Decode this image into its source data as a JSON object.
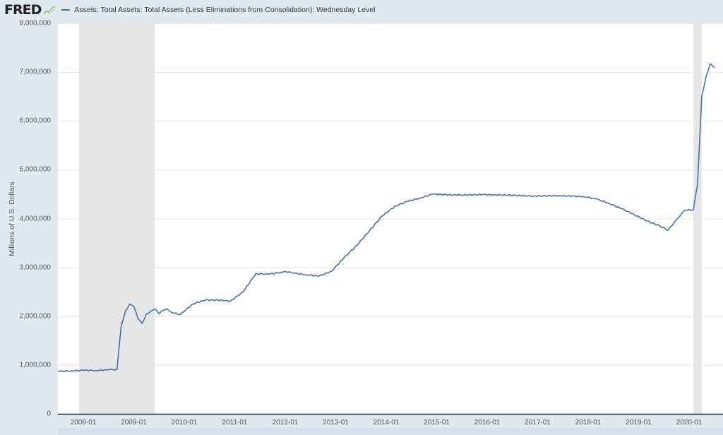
{
  "header": {
    "logo_text": "FRED",
    "logo_icon": "chart-line-icon",
    "series_title": "Assets: Total Assets: Total Assets (Less Eliminations from Consolidation): Wednesday Level"
  },
  "colors": {
    "background": "#e1e9f0",
    "plot_background": "#ffffff",
    "line": "#4572a7",
    "recession": "#e6e6e6",
    "grid": "#e6e6e6",
    "axis": "#222222"
  },
  "chart_data": {
    "type": "line",
    "title": "Assets: Total Assets: Total Assets (Less Eliminations from Consolidation): Wednesday Level",
    "xlabel": "",
    "ylabel": "Millions of U.S. Dollars",
    "ylim": [
      0,
      8000000
    ],
    "xlim": [
      "2007-07",
      "2020-07"
    ],
    "grid": true,
    "legend_position": "top-left",
    "y_ticks": [
      "0",
      "1,000,000",
      "2,000,000",
      "3,000,000",
      "4,000,000",
      "5,000,000",
      "6,000,000",
      "7,000,000",
      "8,000,000"
    ],
    "x_ticks": [
      "2008-01",
      "2009-01",
      "2010-01",
      "2011-01",
      "2012-01",
      "2013-01",
      "2014-01",
      "2015-01",
      "2016-01",
      "2017-01",
      "2018-01",
      "2019-01",
      "2020-01"
    ],
    "recessions": [
      {
        "start": "2007-12",
        "end": "2009-06"
      },
      {
        "start": "2020-02",
        "end": "2020-04"
      }
    ],
    "series": [
      {
        "name": "Assets: Total Assets: Total Assets (Less Eliminations from Consolidation): Wednesday Level",
        "x": [
          "2007-07",
          "2007-10",
          "2008-01",
          "2008-04",
          "2008-07",
          "2008-09",
          "2008-10",
          "2008-11",
          "2008-12",
          "2009-01",
          "2009-02",
          "2009-03",
          "2009-04",
          "2009-05",
          "2009-06",
          "2009-07",
          "2009-08",
          "2009-09",
          "2009-10",
          "2009-12",
          "2010-03",
          "2010-06",
          "2010-09",
          "2010-12",
          "2011-03",
          "2011-06",
          "2011-09",
          "2011-12",
          "2012-01",
          "2012-03",
          "2012-06",
          "2012-09",
          "2012-12",
          "2013-03",
          "2013-06",
          "2013-09",
          "2013-12",
          "2014-03",
          "2014-06",
          "2014-09",
          "2014-12",
          "2015-06",
          "2015-12",
          "2016-06",
          "2016-12",
          "2017-06",
          "2017-12",
          "2018-03",
          "2018-06",
          "2018-09",
          "2018-12",
          "2019-03",
          "2019-06",
          "2019-08",
          "2019-10",
          "2019-12",
          "2020-02",
          "2020-03",
          "2020-04",
          "2020-05",
          "2020-06",
          "2020-07"
        ],
        "values": [
          870000,
          880000,
          890000,
          890000,
          900000,
          910000,
          1800000,
          2100000,
          2250000,
          2200000,
          1950000,
          1850000,
          2050000,
          2100000,
          2150000,
          2050000,
          2120000,
          2150000,
          2080000,
          2030000,
          2250000,
          2330000,
          2330000,
          2310000,
          2500000,
          2870000,
          2860000,
          2900000,
          2920000,
          2880000,
          2850000,
          2820000,
          2920000,
          3200000,
          3450000,
          3750000,
          4050000,
          4250000,
          4350000,
          4420000,
          4500000,
          4480000,
          4490000,
          4480000,
          4460000,
          4470000,
          4450000,
          4400000,
          4310000,
          4200000,
          4080000,
          3950000,
          3850000,
          3760000,
          3980000,
          4170000,
          4180000,
          4700000,
          6500000,
          6900000,
          7170000,
          7090000
        ]
      }
    ]
  },
  "navigator": {
    "visible": true
  }
}
